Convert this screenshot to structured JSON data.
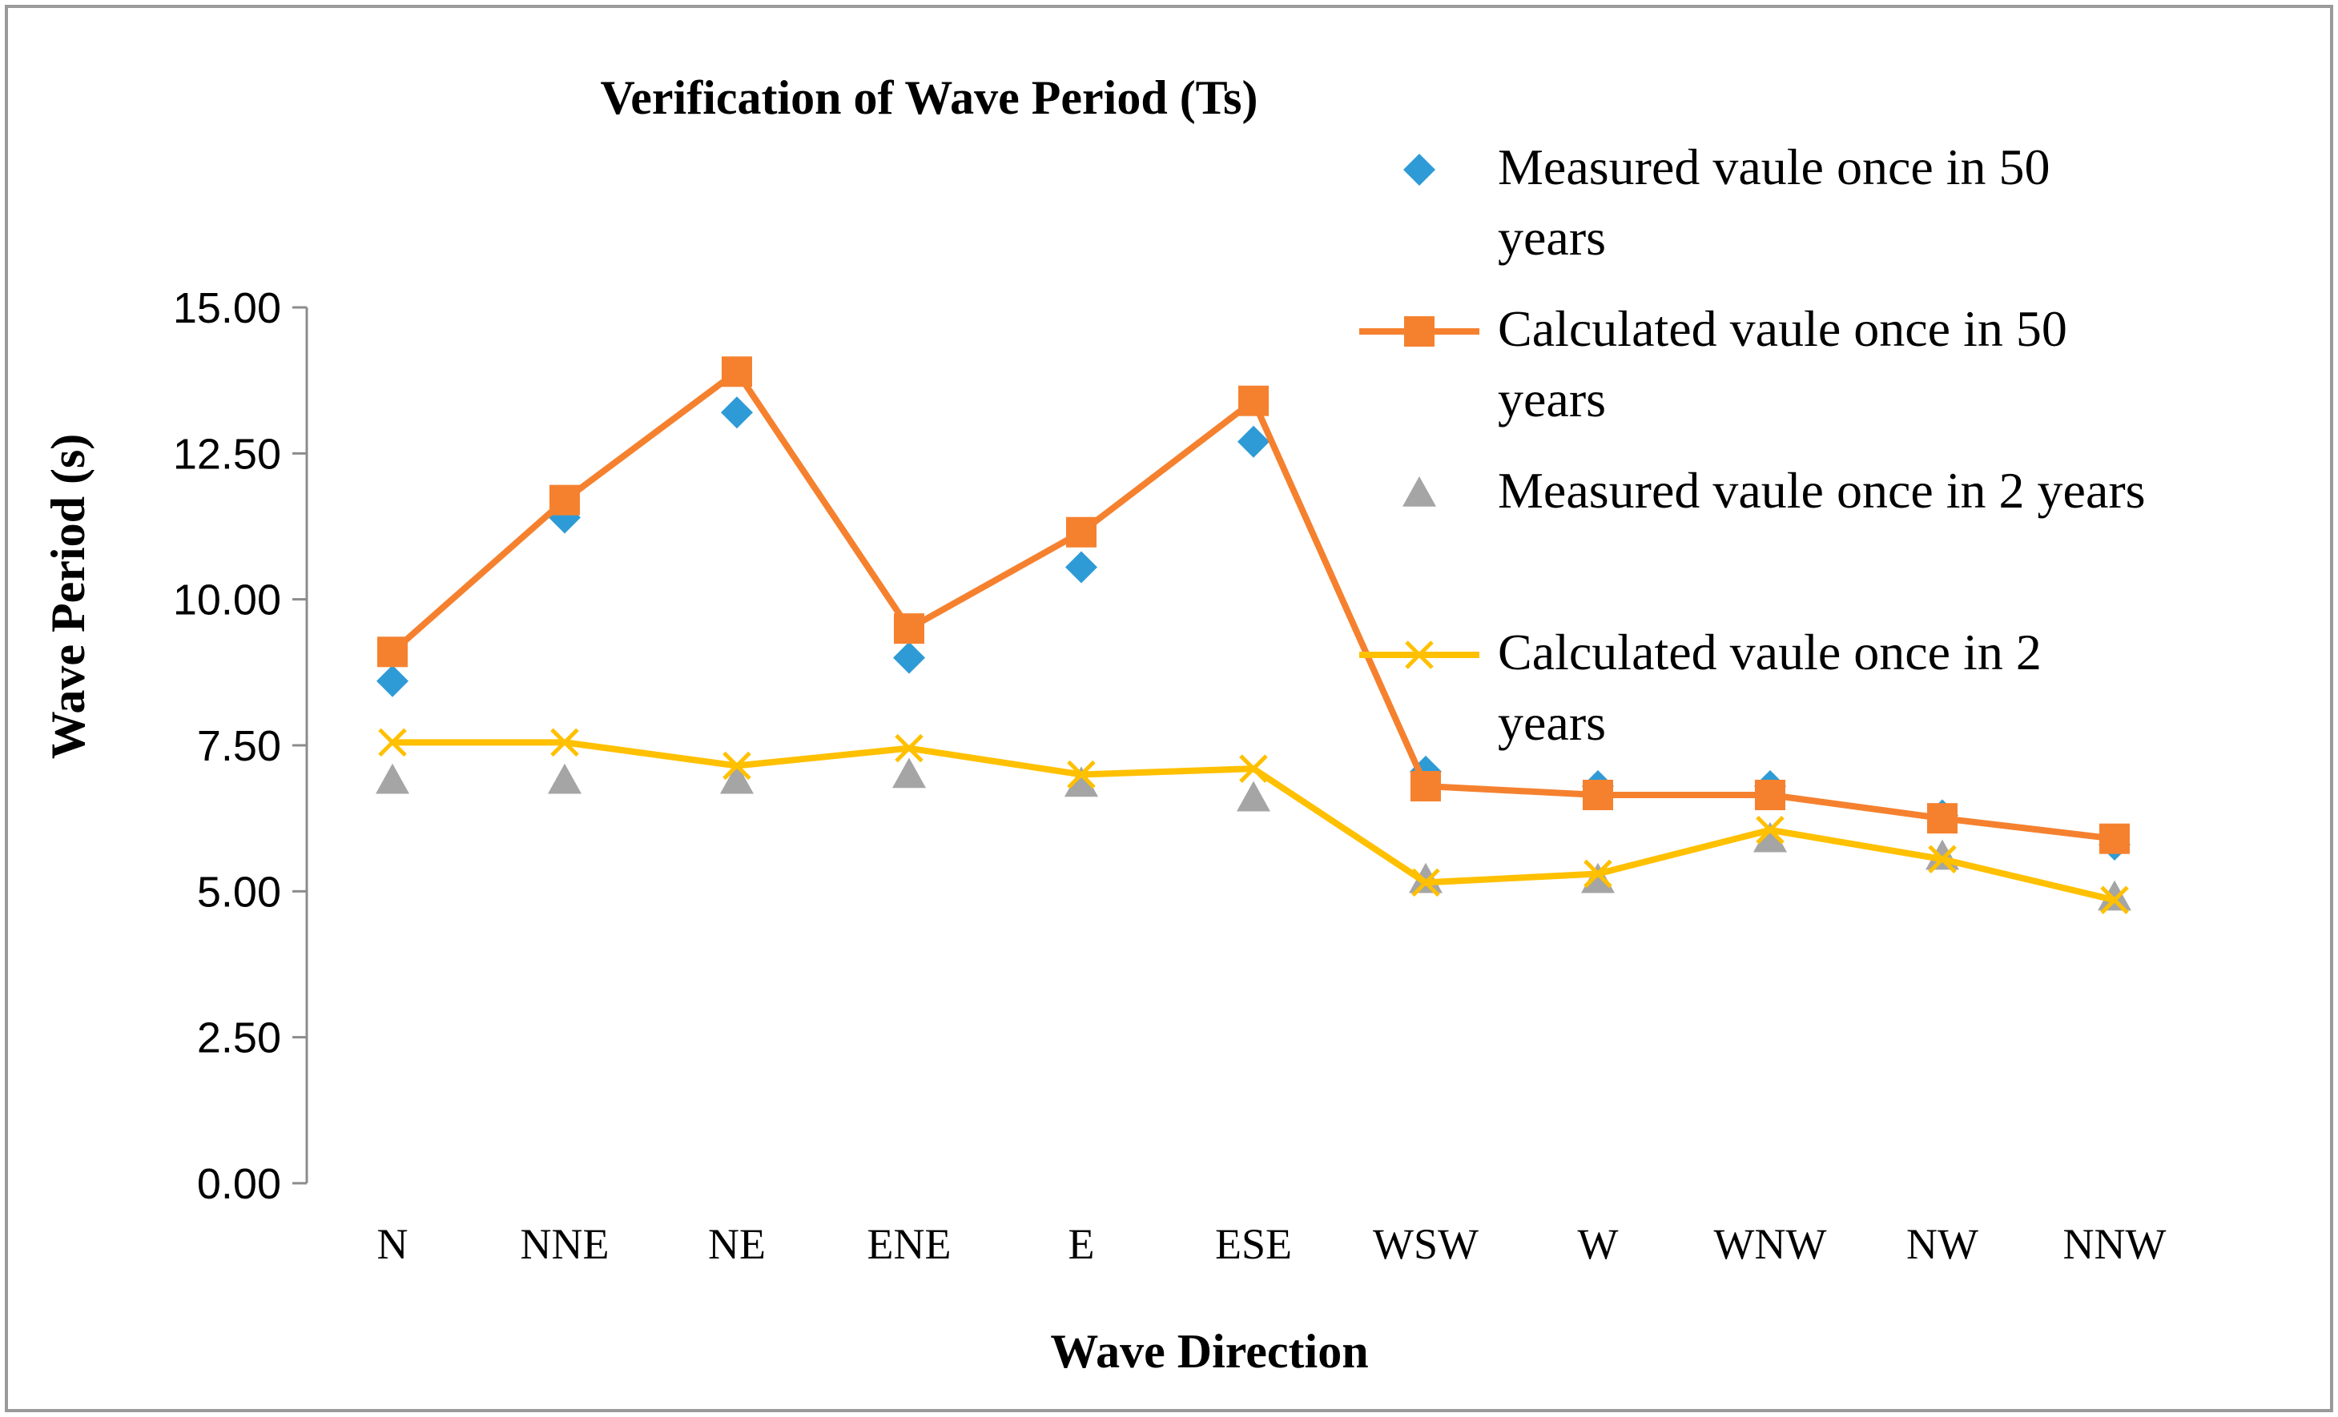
{
  "chart_data": {
    "type": "line",
    "title": "Verification of Wave Period (Ts)",
    "xlabel": "Wave Direction",
    "ylabel": "Wave Period (s)",
    "ylim": [
      0,
      15
    ],
    "y_ticks": [
      "0.00",
      "2.50",
      "5.00",
      "7.50",
      "10.00",
      "12.50",
      "15.00"
    ],
    "y_tick_values": [
      0,
      2.5,
      5,
      7.5,
      10,
      12.5,
      15
    ],
    "grid": false,
    "legend_position": "right",
    "categories": [
      "N",
      "NNE",
      "NE",
      "ENE",
      "E",
      "ESE",
      "WSW",
      "W",
      "WNW",
      "NW",
      "NNW"
    ],
    "series": [
      {
        "name": "Measured vaule once in 50 years",
        "legend_lines": [
          "Measured vaule once in 50",
          "years"
        ],
        "marker": "diamond",
        "line": false,
        "color": "#2e9bd6",
        "values": [
          8.6,
          11.4,
          13.2,
          9.0,
          10.55,
          12.7,
          7.05,
          6.8,
          6.8,
          6.3,
          5.8
        ]
      },
      {
        "name": "Calculated vaule once in 50 years",
        "legend_lines": [
          "Calculated vaule once in 50",
          "years"
        ],
        "marker": "square",
        "line": true,
        "color": "#f5812f",
        "values": [
          9.1,
          11.7,
          13.9,
          9.5,
          11.15,
          13.4,
          6.8,
          6.65,
          6.65,
          6.25,
          5.9
        ]
      },
      {
        "name": "Measured vaule once in 2 years",
        "legend_lines": [
          "Measured vaule once in 2 years"
        ],
        "marker": "triangle",
        "line": false,
        "color": "#a5a5a5",
        "values": [
          6.9,
          6.9,
          6.9,
          7.0,
          6.85,
          6.6,
          5.2,
          5.2,
          5.9,
          5.6,
          4.9
        ]
      },
      {
        "name": "Calculated vaule once in 2 years",
        "legend_lines": [
          "Calculated vaule once in 2",
          "years"
        ],
        "marker": "x",
        "line": true,
        "color": "#ffc000",
        "values": [
          7.55,
          7.55,
          7.15,
          7.45,
          7.0,
          7.1,
          5.15,
          5.3,
          6.05,
          5.55,
          4.85
        ]
      }
    ]
  }
}
